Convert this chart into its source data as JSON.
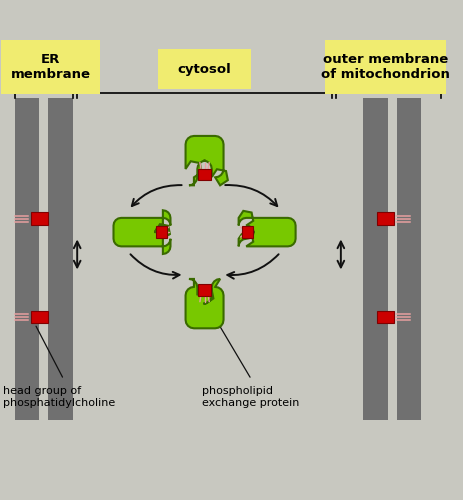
{
  "bg_color": "#c8c8c0",
  "membrane_color": "#707070",
  "label_bg": "#f0ec70",
  "protein_color": "#78c800",
  "protein_edge": "#3a6a00",
  "head_color": "#cc0000",
  "tail_color": "#e8a0a0",
  "arrow_color": "#111111",
  "labels": {
    "er": "ER\nmembrane",
    "cytosol": "cytosol",
    "outer": "outer membrane\nof mitochondrion",
    "head": "head group of\nphosphatidylcholine",
    "exchange": "phospholipid\nexchange protein"
  },
  "fig_w": 4.63,
  "fig_h": 5.0,
  "dpi": 100
}
